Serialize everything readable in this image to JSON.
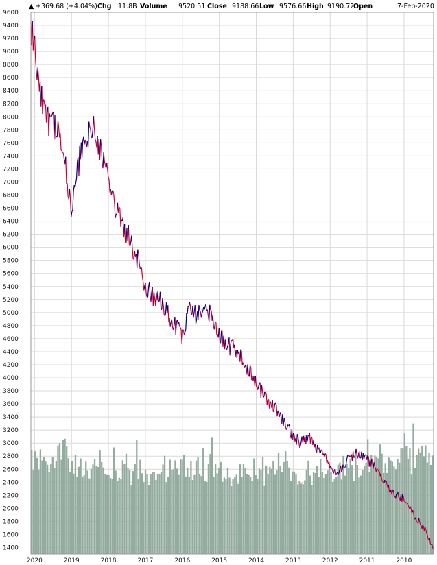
{
  "header": {
    "date": "7-Feb-2020",
    "open_label": "Open",
    "open_value": "9190.72",
    "high_label": "High",
    "high_value": "9576.66",
    "low_label": "Low",
    "low_value": "9188.66",
    "close_label": "Close",
    "close_value": "9520.51",
    "volume_label": "Volume",
    "volume_value": "11.8B",
    "chg_label": "Chg",
    "chg_value": "+369.68 (+4.04%)",
    "triangle": "▲"
  },
  "chart_data": {
    "type": "line",
    "title": "",
    "xlabel": "",
    "ylabel": "",
    "mirrored_horizontally": true,
    "ylim": [
      1300,
      9600
    ],
    "y_ticks": [
      1400,
      1600,
      1800,
      2000,
      2200,
      2400,
      2600,
      2800,
      3000,
      3200,
      3400,
      3600,
      3800,
      4000,
      4200,
      4400,
      4600,
      4800,
      5000,
      5200,
      5400,
      5600,
      5800,
      6000,
      6200,
      6400,
      6600,
      6800,
      7000,
      7200,
      7400,
      7600,
      7800,
      8000,
      8200,
      8400,
      8600,
      8800,
      9000,
      9200,
      9400,
      9600
    ],
    "y_tick_labels": [
      "1400",
      "1600",
      "1800",
      "2000",
      "2200",
      "2400",
      "2600",
      "2800",
      "3000",
      "3200",
      "3400",
      "3600",
      "3800",
      "4000",
      "4200",
      "4400",
      "4600",
      "4800",
      "5000",
      "5200",
      "5400",
      "5600",
      "5800",
      "6000",
      "6200",
      "6400",
      "6600",
      "6800",
      "7000",
      "7200",
      "7400",
      "7600",
      "7800",
      "8000",
      "8200",
      "8400",
      "8600",
      "8800",
      "9000",
      "9200",
      "9400",
      "9600"
    ],
    "x_range": [
      2009.2,
      2020.1
    ],
    "x_ticks": [
      2010,
      2011,
      2012,
      2013,
      2014,
      2015,
      2016,
      2017,
      2018,
      2019,
      2020
    ],
    "x_tick_labels": [
      "2010",
      "2011",
      "2012",
      "2013",
      "2014",
      "2015",
      "2016",
      "2017",
      "2018",
      "2019",
      "2020"
    ],
    "grid": true,
    "series": [
      {
        "role": "price",
        "colors": [
          "#cc0033",
          "#000080"
        ],
        "x": [
          2009.2,
          2009.4,
          2009.6,
          2009.8,
          2010.0,
          2010.2,
          2010.4,
          2010.6,
          2010.8,
          2011.0,
          2011.2,
          2011.4,
          2011.6,
          2011.8,
          2012.0,
          2012.2,
          2012.4,
          2012.6,
          2012.8,
          2013.0,
          2013.2,
          2013.4,
          2013.6,
          2013.8,
          2014.0,
          2014.2,
          2014.4,
          2014.6,
          2014.8,
          2015.0,
          2015.2,
          2015.4,
          2015.6,
          2015.8,
          2016.0,
          2016.2,
          2016.4,
          2016.6,
          2016.8,
          2017.0,
          2017.2,
          2017.4,
          2017.6,
          2017.8,
          2018.0,
          2018.2,
          2018.4,
          2018.6,
          2018.8,
          2019.0,
          2019.2,
          2019.4,
          2019.6,
          2019.8,
          2020.0,
          2020.1
        ],
        "values": [
          1350,
          1650,
          1800,
          1950,
          2150,
          2200,
          2300,
          2450,
          2650,
          2750,
          2850,
          2800,
          2700,
          2550,
          2650,
          2900,
          2950,
          3100,
          3000,
          3100,
          3300,
          3450,
          3600,
          3750,
          3900,
          4100,
          4350,
          4450,
          4500,
          4650,
          4950,
          5050,
          4950,
          5050,
          4650,
          4800,
          5000,
          5200,
          5250,
          5400,
          5800,
          6100,
          6300,
          6600,
          7000,
          7450,
          7800,
          7650,
          7300,
          6450,
          7400,
          7900,
          7850,
          8200,
          9100,
          9350
        ]
      },
      {
        "role": "volume",
        "color": "#94ab9f",
        "unit": "B",
        "ylim": [
          0,
          20
        ],
        "x": [
          2009.2,
          2009.4,
          2009.6,
          2009.8,
          2010.0,
          2010.2,
          2010.4,
          2010.6,
          2010.8,
          2011.0,
          2011.2,
          2011.4,
          2011.6,
          2011.8,
          2012.0,
          2012.2,
          2012.4,
          2012.6,
          2012.8,
          2013.0,
          2013.2,
          2013.4,
          2013.6,
          2013.8,
          2014.0,
          2014.2,
          2014.4,
          2014.6,
          2014.8,
          2015.0,
          2015.2,
          2015.4,
          2015.6,
          2015.8,
          2016.0,
          2016.2,
          2016.4,
          2016.6,
          2016.8,
          2017.0,
          2017.2,
          2017.4,
          2017.6,
          2017.8,
          2018.0,
          2018.2,
          2018.4,
          2018.6,
          2018.8,
          2019.0,
          2019.2,
          2019.4,
          2019.6,
          2019.8,
          2020.0,
          2020.1
        ],
        "values": [
          11.5,
          12.5,
          11.8,
          10.5,
          12.8,
          11.5,
          10.5,
          11.2,
          11.8,
          9.5,
          9.8,
          10.2,
          10.4,
          10.0,
          9.5,
          10.5,
          9.8,
          9.2,
          9.5,
          9.6,
          9.8,
          9.4,
          9.6,
          9.2,
          9.8,
          10.1,
          9.5,
          9.3,
          9.0,
          10.0,
          9.8,
          9.6,
          10.2,
          9.5,
          11.0,
          10.2,
          9.8,
          9.5,
          9.4,
          9.6,
          9.8,
          9.4,
          10.5,
          9.8,
          10.4,
          11.0,
          10.2,
          10.0,
          10.6,
          11.2,
          12.0,
          11.4,
          11.0,
          10.6,
          11.0,
          11.5
        ]
      }
    ]
  }
}
